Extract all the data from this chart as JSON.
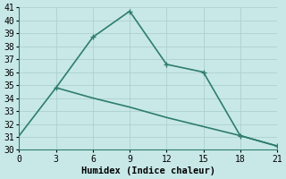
{
  "line1_x": [
    3,
    6,
    9,
    12,
    15
  ],
  "line1_y": [
    34.8,
    38.7,
    40.7,
    36.6,
    36.0
  ],
  "line1_x_full": [
    3,
    6,
    9,
    12,
    15,
    18,
    21
  ],
  "line1_y_full": [
    34.8,
    38.7,
    40.7,
    36.6,
    36.0,
    31.1,
    30.3
  ],
  "line2_x": [
    0,
    3,
    6,
    9,
    12,
    15,
    18,
    21
  ],
  "line2_y": [
    31.1,
    34.8,
    34.0,
    33.3,
    32.5,
    31.8,
    31.1,
    30.3
  ],
  "line2_marker_x": [],
  "line2_marker_y": [],
  "line_color": "#2e7d6e",
  "bg_color": "#c8e8e8",
  "grid_color": "#aecfcf",
  "xlabel": "Humidex (Indice chaleur)",
  "xlim": [
    0,
    21
  ],
  "ylim": [
    30,
    41
  ],
  "xticks": [
    0,
    3,
    6,
    9,
    12,
    15,
    18,
    21
  ],
  "yticks": [
    30,
    31,
    32,
    33,
    34,
    35,
    36,
    37,
    38,
    39,
    40,
    41
  ],
  "markersize": 4,
  "linewidth": 1.2,
  "xlabel_fontsize": 7.5,
  "tick_fontsize": 7,
  "font_family": "monospace"
}
